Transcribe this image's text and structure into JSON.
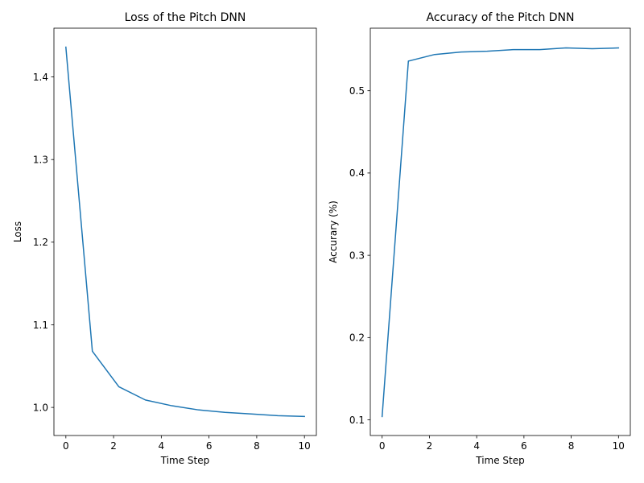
{
  "chart_data": [
    {
      "type": "line",
      "title": "Loss of the Pitch DNN",
      "xlabel": "Time Step",
      "ylabel": "Loss",
      "xlim": [
        -0.5,
        10.5
      ],
      "ylim": [
        0.966,
        1.459
      ],
      "xticks": [
        0,
        2,
        4,
        6,
        8,
        10
      ],
      "xtick_labels": [
        "0",
        "2",
        "4",
        "6",
        "8",
        "10"
      ],
      "yticks": [
        1.0,
        1.1,
        1.2,
        1.3,
        1.4
      ],
      "ytick_labels": [
        "1.0",
        "1.1",
        "1.2",
        "1.3",
        "1.4"
      ],
      "grid": false,
      "series": [
        {
          "color": "#1f77b4",
          "x": [
            0,
            1.111,
            2.222,
            3.333,
            4.444,
            5.556,
            6.667,
            7.778,
            8.889,
            10
          ],
          "y": [
            1.436,
            1.068,
            1.025,
            1.009,
            1.002,
            0.997,
            0.994,
            0.992,
            0.99,
            0.989
          ]
        }
      ]
    },
    {
      "type": "line",
      "title": "Accuracy of the Pitch DNN",
      "xlabel": "Time Step",
      "ylabel": "Accurary (%)",
      "xlim": [
        -0.5,
        10.5
      ],
      "ylim": [
        0.081,
        0.576
      ],
      "xticks": [
        0,
        2,
        4,
        6,
        8,
        10
      ],
      "xtick_labels": [
        "0",
        "2",
        "4",
        "6",
        "8",
        "10"
      ],
      "yticks": [
        0.1,
        0.2,
        0.3,
        0.4,
        0.5
      ],
      "ytick_labels": [
        "0.1",
        "0.2",
        "0.3",
        "0.4",
        "0.5"
      ],
      "grid": false,
      "series": [
        {
          "color": "#1f77b4",
          "x": [
            0,
            1.111,
            2.222,
            3.333,
            4.444,
            5.556,
            6.667,
            7.778,
            8.889,
            10
          ],
          "y": [
            0.104,
            0.536,
            0.544,
            0.547,
            0.548,
            0.55,
            0.55,
            0.552,
            0.551,
            0.552
          ]
        }
      ]
    }
  ]
}
